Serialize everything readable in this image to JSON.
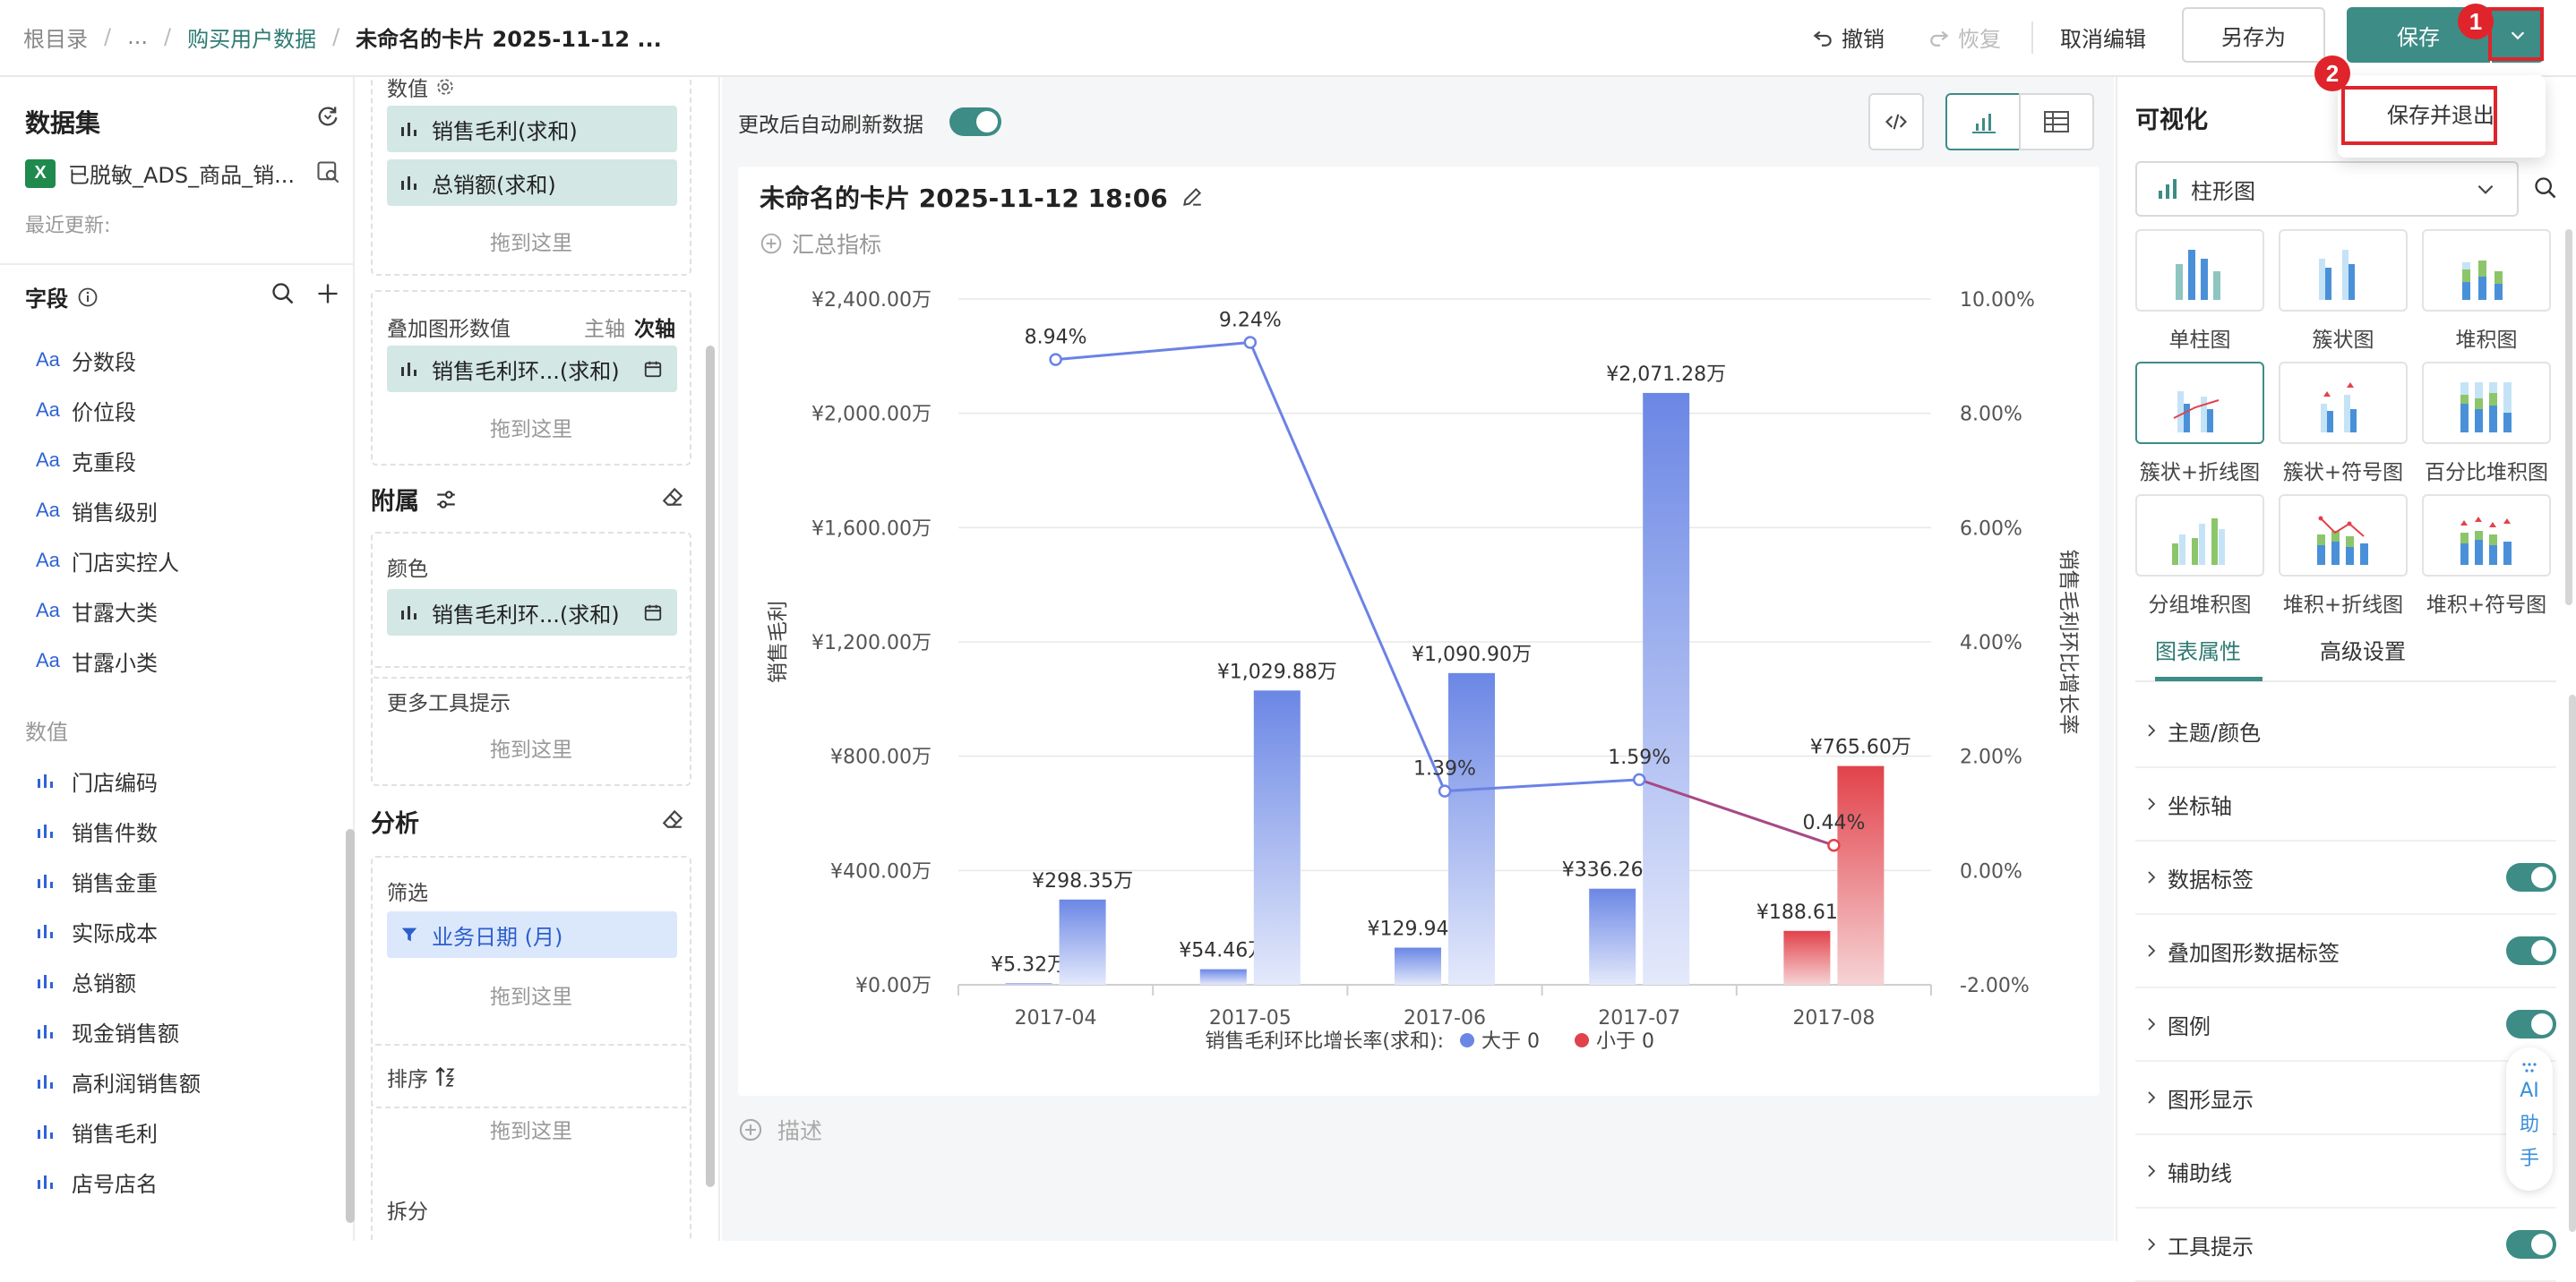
{
  "breadcrumb": {
    "root": "根目录",
    "ellipsis": "...",
    "parent": "购买用户数据",
    "current": "未命名的卡片 2025-11-12 ..."
  },
  "toolbar": {
    "undo": "撤销",
    "redo": "恢复",
    "cancel_edit": "取消编辑",
    "save_as": "另存为",
    "save": "保存"
  },
  "dropdown": {
    "save_exit": "保存并退出"
  },
  "annotations": {
    "b1": "1",
    "b2": "2"
  },
  "left": {
    "title": "数据集",
    "file": "已脱敏_ADS_商品_销...",
    "file_icon": "X",
    "recent": "最近更新:",
    "fields_title": "字段",
    "dims": [
      "分数段",
      "价位段",
      "克重段",
      "销售级别",
      "门店实控人",
      "甘露大类",
      "甘露小类"
    ],
    "dim_prefix": "Aa",
    "measures_title": "数值",
    "measures": [
      "门店编码",
      "销售件数",
      "销售金重",
      "实际成本",
      "总销额",
      "现金销售额",
      "高利润销售额",
      "销售毛利",
      "店号店名"
    ]
  },
  "config": {
    "values_label": "数值",
    "chips": [
      "销售毛利(求和)",
      "总销额(求和)"
    ],
    "drop": "拖到这里",
    "overlay_label": "叠加图形数值",
    "main_axis": "主轴",
    "sub_axis": "次轴",
    "overlay_chip": "销售毛利环...(求和)",
    "attach_title": "附属",
    "color_label": "颜色",
    "color_chip": "销售毛利环...(求和)",
    "tooltip_label": "更多工具提示",
    "analysis_title": "分析",
    "filter_label": "筛选",
    "filter_chip": "业务日期 (月)",
    "sort_label": "排序",
    "split_label": "拆分"
  },
  "center": {
    "auto_refresh": "更改后自动刷新数据",
    "card_title": "未命名的卡片 2025-11-12 18:06",
    "summary": "汇总指标",
    "describe": "描述"
  },
  "chart_data": {
    "type": "bar",
    "categories": [
      "2017-04",
      "2017-05",
      "2017-06",
      "2017-07",
      "2017-08"
    ],
    "y_ticks": [
      "¥0.00万",
      "¥400.00万",
      "¥800.00万",
      "¥1,200.00万",
      "¥1,600.00万",
      "¥2,000.00万",
      "¥2,400.00万"
    ],
    "y2_ticks": [
      "-2.00%",
      "0.00%",
      "2.00%",
      "4.00%",
      "6.00%",
      "8.00%",
      "10.00%"
    ],
    "ylim": [
      0,
      2400
    ],
    "y2lim": [
      -2,
      10
    ],
    "ylabel": "销售毛利",
    "y2label": "销售毛利环比增长率",
    "series": [
      {
        "values": [
          5.32,
          54.46,
          129.94,
          336.26,
          188.61
        ],
        "labels": [
          "¥5.32万",
          "¥54.46万",
          "¥129.94万",
          "¥336.26万",
          "¥188.61万"
        ]
      },
      {
        "values": [
          298.35,
          1029.88,
          1090.9,
          2071.28,
          765.6
        ],
        "labels": [
          "¥298.35万",
          "¥1,029.88万",
          "¥1,090.90万",
          "¥2,071.28万",
          "¥765.60万"
        ]
      }
    ],
    "line": {
      "values": [
        8.94,
        9.24,
        1.39,
        1.59,
        0.44
      ],
      "labels": [
        "8.94%",
        "9.24%",
        "1.39%",
        "1.59%",
        "0.44%"
      ]
    },
    "legend": {
      "title": "销售毛利环比增长率(求和):",
      "pos": "大于 0",
      "neg": "小于 0"
    },
    "colors": {
      "blue": "#6b87e5",
      "red": "#e2424a",
      "line": "#6b82e6"
    }
  },
  "right": {
    "title": "可视化",
    "selected_type": "柱形图",
    "types": [
      "单柱图",
      "簇状图",
      "堆积图",
      "簇状+折线图",
      "簇状+符号图",
      "百分比堆积图",
      "分组堆积图",
      "堆积+折线图",
      "堆积+符号图"
    ],
    "tab_props": "图表属性",
    "tab_adv": "高级设置",
    "props": [
      "主题/颜色",
      "坐标轴",
      "数据标签",
      "叠加图形数据标签",
      "图例",
      "图形显示",
      "辅助线",
      "工具提示"
    ],
    "ai": [
      "AI",
      "助",
      "手"
    ]
  }
}
